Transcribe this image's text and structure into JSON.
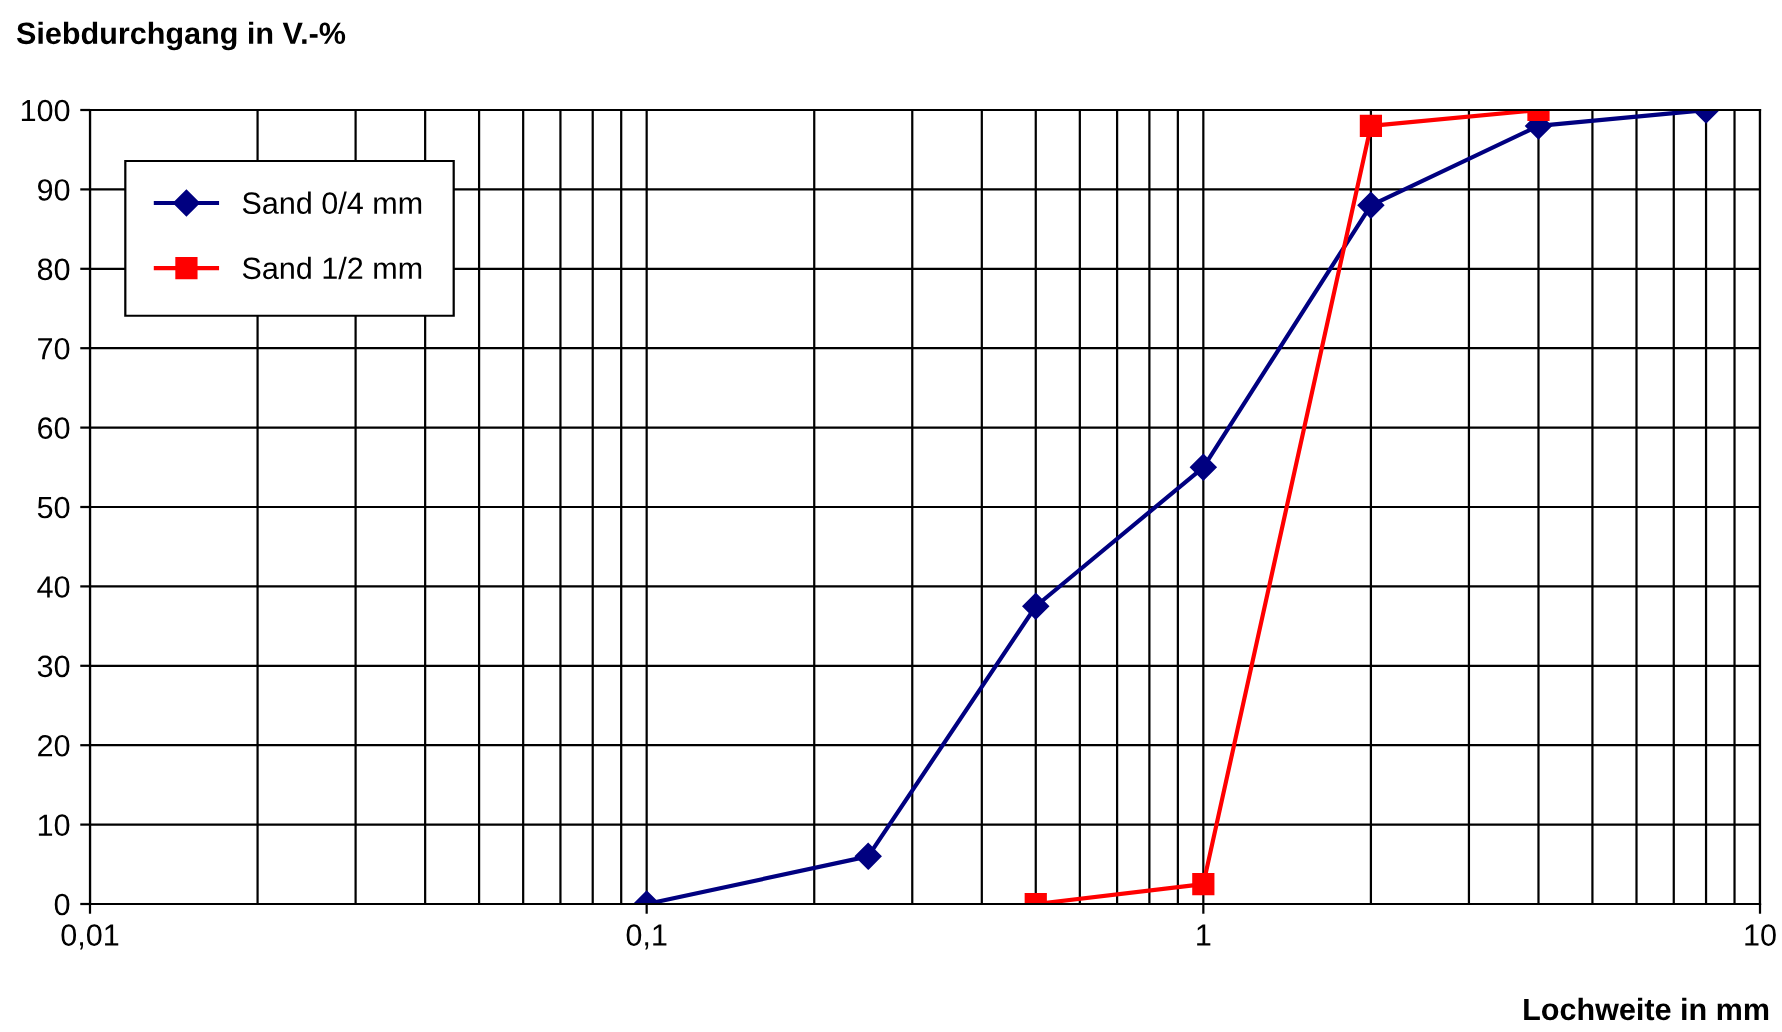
{
  "chart_data": {
    "type": "line",
    "xlabel": "Lochweite in mm",
    "ylabel": "Siebdurchgang in V.-%",
    "log": "x",
    "grid": true,
    "legend": "top left",
    "xlim": [
      0.01,
      10
    ],
    "xticks": [
      {
        "value": 0.01,
        "label": "0,01"
      },
      {
        "value": 0.1,
        "label": "0,1"
      },
      1,
      10
    ],
    "ylim": [
      0,
      100
    ],
    "yticks": [
      0,
      10,
      20,
      30,
      40,
      50,
      60,
      70,
      80,
      90,
      100
    ],
    "series": [
      {
        "name": "Sand 0/4 mm",
        "color": "#000080",
        "marker": "diamond",
        "x": [
          0.1,
          0.25,
          0.5,
          1,
          2,
          4,
          8
        ],
        "values": [
          0,
          6,
          37.5,
          55,
          88,
          98,
          100
        ]
      },
      {
        "name": "Sand 1/2 mm",
        "color": "#ff0000",
        "marker": "square",
        "x": [
          0.5,
          1,
          2,
          4
        ],
        "values": [
          0,
          2.5,
          98,
          100
        ]
      }
    ]
  }
}
